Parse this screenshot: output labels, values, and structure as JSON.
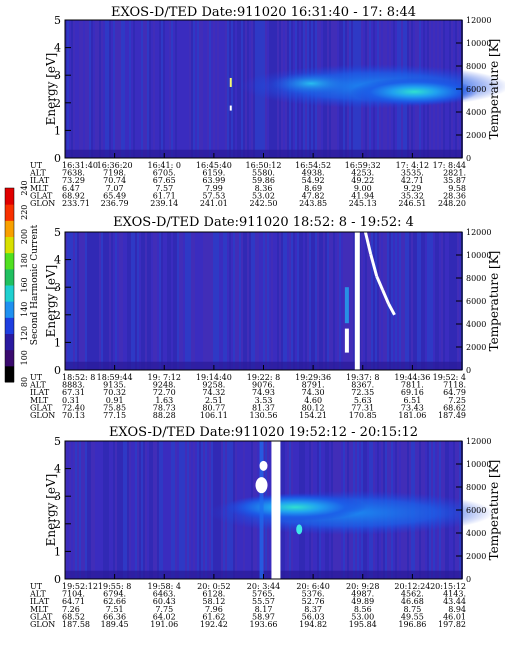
{
  "chart_data": [
    {
      "type": "heatmap",
      "title": "EXOS-D/TED   Date:911020  16:31:40 - 17: 8:44",
      "ylabel": "Energy [eV]",
      "ylabel_right": "Temperature [K]",
      "ylim": [
        0,
        5
      ],
      "ylim_right": [
        0,
        12000
      ],
      "yticks": [
        "0",
        "1",
        "2",
        "3",
        "4",
        "5"
      ],
      "yticks_right": [
        "0",
        "2000",
        "4000",
        "6000",
        "8000",
        "10000",
        "12000"
      ],
      "row_labels": [
        "UT",
        "ALT",
        "ILAT",
        "MLT",
        "GLAT",
        "GLON"
      ],
      "columns": [
        [
          "16:31:40",
          "7638.",
          "73.29",
          "6.47",
          "68.92",
          "233.71"
        ],
        [
          "16:36:20",
          "7198.",
          "70.74",
          "7.07",
          "65.49",
          "236.79"
        ],
        [
          "16:41: 0",
          "6705.",
          "67.65",
          "7.57",
          "61.71",
          "239.14"
        ],
        [
          "16:45:40",
          "6159.",
          "63.99",
          "7.99",
          "57.53",
          "241.01"
        ],
        [
          "16:50:12",
          "5580.",
          "59.86",
          "8.36",
          "53.02",
          "242.50"
        ],
        [
          "16:54:52",
          "4938.",
          "54.92",
          "8.69",
          "47.82",
          "243.85"
        ],
        [
          "16:59:32",
          "4253.",
          "49.22",
          "9.00",
          "41.94",
          "245.13"
        ],
        [
          "17: 4:12",
          "3535.",
          "42.71",
          "9.29",
          "35.32",
          "246.51"
        ],
        [
          "17: 8:44",
          "2821.",
          "35.87",
          "9.58",
          "28.36",
          "248.20"
        ]
      ]
    },
    {
      "type": "heatmap",
      "title": "EXOS-D/TED   Date:911020  18:52: 8 - 19:52: 4",
      "ylabel": "Energy [eV]",
      "ylabel_right": "Temperature [K]",
      "ylim": [
        0,
        5
      ],
      "ylim_right": [
        0,
        12000
      ],
      "yticks": [
        "0",
        "1",
        "2",
        "3",
        "4",
        "5"
      ],
      "yticks_right": [
        "0",
        "2000",
        "4000",
        "6000",
        "8000",
        "10000",
        "12000"
      ],
      "row_labels": [
        "UT",
        "ALT",
        "ILAT",
        "MLT",
        "GLAT",
        "GLON"
      ],
      "columns": [
        [
          "18:52: 8",
          "8883.",
          "67.31",
          "0.31",
          "72.40",
          "70.13"
        ],
        [
          "18:59:44",
          "9135.",
          "70.32",
          "0.91",
          "75.85",
          "77.15"
        ],
        [
          "19: 7:12",
          "9248.",
          "72.70",
          "1.63",
          "78.73",
          "88.28"
        ],
        [
          "19:14:40",
          "9258.",
          "74.32",
          "2.51",
          "80.77",
          "106.11"
        ],
        [
          "19:22: 8",
          "9076.",
          "74.93",
          "3.53",
          "81.37",
          "130.56"
        ],
        [
          "19:29:36",
          "8791.",
          "74.30",
          "4.60",
          "80.12",
          "154.21"
        ],
        [
          "19:37: 8",
          "8367.",
          "72.35",
          "5.63",
          "77.31",
          "170.85"
        ],
        [
          "19:44:36",
          "7811.",
          "69.16",
          "6.51",
          "73.43",
          "181.06"
        ],
        [
          "19:52: 4",
          "7118.",
          "64.79",
          "7.25",
          "68.62",
          "187.49"
        ]
      ]
    },
    {
      "type": "heatmap",
      "title": "EXOS-D/TED   Date:911020  19:52:12 - 20:15:12",
      "ylabel": "Energy [eV]",
      "ylabel_right": "Temperature [K]",
      "ylim": [
        0,
        5
      ],
      "ylim_right": [
        0,
        12000
      ],
      "yticks": [
        "0",
        "1",
        "2",
        "3",
        "4",
        "5"
      ],
      "yticks_right": [
        "0",
        "2000",
        "4000",
        "6000",
        "8000",
        "10000",
        "12000"
      ],
      "row_labels": [
        "UT",
        "ALT",
        "ILAT",
        "MLT",
        "GLAT",
        "GLON"
      ],
      "columns": [
        [
          "19:52:12",
          "7104.",
          "64.71",
          "7.26",
          "68.52",
          "187.58"
        ],
        [
          "19:55: 8",
          "6794.",
          "62.66",
          "7.51",
          "66.36",
          "189.45"
        ],
        [
          "19:58: 4",
          "6463.",
          "60.43",
          "7.75",
          "64.02",
          "191.06"
        ],
        [
          "20: 0:52",
          "6128.",
          "58.12",
          "7.96",
          "61.62",
          "192.42"
        ],
        [
          "20: 3:44",
          "5765.",
          "55.57",
          "8.17",
          "58.97",
          "193.66"
        ],
        [
          "20: 6:40",
          "5376.",
          "52.76",
          "8.37",
          "56.03",
          "194.82"
        ],
        [
          "20: 9:28",
          "4987.",
          "49.89",
          "8.56",
          "53.00",
          "195.84"
        ],
        [
          "20:12:24",
          "4562.",
          "46.68",
          "8.75",
          "49.55",
          "196.86"
        ],
        [
          "20:15:12",
          "4143.",
          "43.44",
          "8.94",
          "46.01",
          "197.82"
        ]
      ]
    }
  ],
  "colorbar": {
    "label": "Second Harmonic Current",
    "ticks": [
      "80",
      "100",
      "120",
      "140",
      "160",
      "180",
      "200",
      "220",
      "240"
    ],
    "colors": [
      "#000000",
      "#3a0a6e",
      "#2a1aa0",
      "#1e3ee0",
      "#1f90f0",
      "#1fd0d0",
      "#20c060",
      "#50e020",
      "#d8e000",
      "#f8a000",
      "#f83000",
      "#e00000"
    ]
  }
}
